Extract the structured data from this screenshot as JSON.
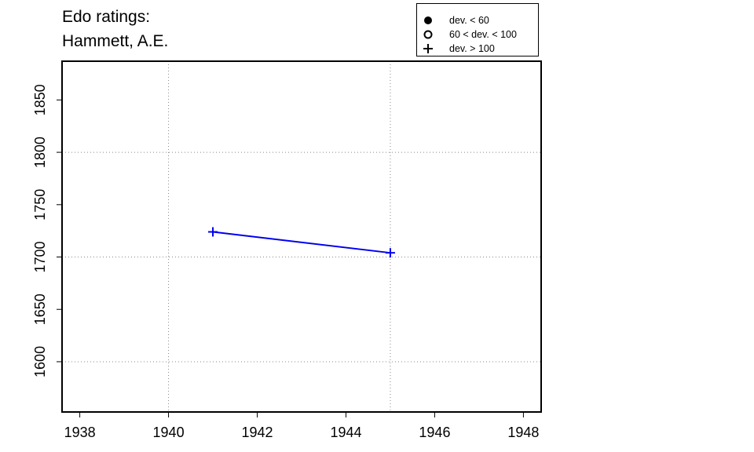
{
  "title_lines": [
    "Edo ratings:",
    "Hammett, A.E."
  ],
  "legend": [
    {
      "symbol": "filled-circle",
      "label": "dev. < 60"
    },
    {
      "symbol": "open-circle",
      "label": "60 < dev. < 100"
    },
    {
      "symbol": "plus",
      "label": "dev. > 100"
    }
  ],
  "colors": {
    "series": "#0000ee",
    "axis": "#000000",
    "grid": "#888888"
  },
  "chart_data": {
    "type": "line",
    "xlim": [
      1937.6,
      1948.4
    ],
    "ylim": [
      1552,
      1887
    ],
    "x_ticks": [
      1938,
      1940,
      1942,
      1944,
      1946,
      1948
    ],
    "y_ticks": [
      1600,
      1650,
      1700,
      1750,
      1800,
      1850
    ],
    "x_grid": [
      1940,
      1945
    ],
    "y_grid": [
      1600,
      1700,
      1800
    ],
    "grid": "dotted",
    "legend_placement": "top-right",
    "series": [
      {
        "marker": "plus",
        "points": [
          {
            "x": 1941,
            "y": 1724
          },
          {
            "x": 1945,
            "y": 1704
          }
        ]
      }
    ]
  }
}
